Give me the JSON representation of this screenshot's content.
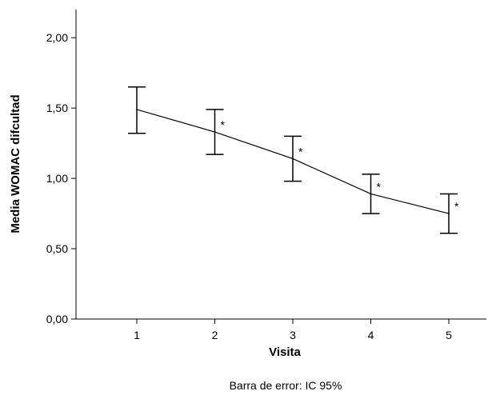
{
  "chart_data": {
    "type": "line",
    "xlabel": "Visita",
    "ylabel": "Media WOMAC difcultad",
    "caption": "Barra de error: IC 95%",
    "categories": [
      "1",
      "2",
      "3",
      "4",
      "5"
    ],
    "values": [
      1.49,
      1.33,
      1.14,
      0.89,
      0.75
    ],
    "ci_upper": [
      1.65,
      1.49,
      1.3,
      1.03,
      0.89
    ],
    "ci_lower": [
      1.32,
      1.17,
      0.98,
      0.75,
      0.61
    ],
    "significance_markers": [
      "",
      "*",
      "*",
      "*",
      "*"
    ],
    "ylim": [
      0,
      2.2
    ],
    "yticks": [
      0,
      0.5,
      1,
      1.5,
      2
    ],
    "ytick_labels": [
      "0,00",
      "0,50",
      "1,00",
      "1,50",
      "2,00"
    ],
    "grid": false,
    "color": "#000000"
  }
}
